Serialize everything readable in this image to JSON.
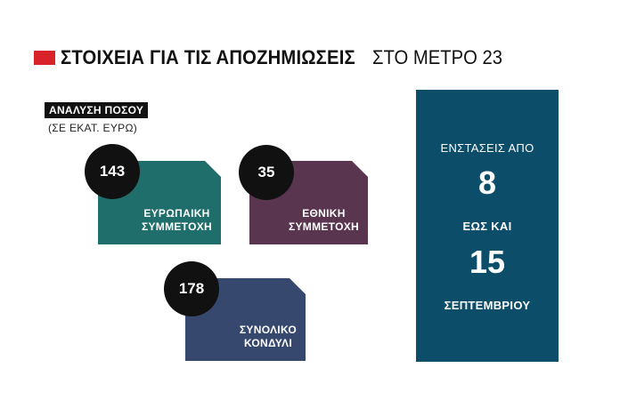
{
  "header": {
    "title_bold": "ΣΤΟΙΧΕΙΑ ΓΙΑ ΤΙΣ ΑΠΟΖΗΜΙΩΣΕΙΣ",
    "title_light": "ΣΤΟ ΜΕΤΡΟ 23",
    "accent_color": "#d9232b"
  },
  "breakdown": {
    "label": "ΑΝΑΛΥΣΗ ΠΟΣΟΥ",
    "unit": "(ΣΕ ΕΚΑΤ. ΕΥΡΩ)"
  },
  "cards": [
    {
      "value": "143",
      "label_line1": "ΕΥΡΩΠΑΙΚΗ",
      "label_line2": "ΣΥΜΜΕΤΟΧΗ",
      "color": "#1f6e6b"
    },
    {
      "value": "35",
      "label_line1": "ΕΘΝΙΚΗ",
      "label_line2": "ΣΥΜΜΕΤΟΧΗ",
      "color": "#5a3550"
    },
    {
      "value": "178",
      "label_line1": "ΣΥΝΟΛΙΚΟ",
      "label_line2": "ΚΟΝΔΥΛΙ",
      "color": "#37486e"
    }
  ],
  "objections": {
    "line1": "ΕΝΣΤΑΣΕΙΣ ΑΠΟ",
    "from_day": "8",
    "line2": "ΕΩΣ ΚΑΙ",
    "to_day": "15",
    "month": "ΣΕΠΤΕΜΒΡΙΟΥ",
    "color": "#0c4d6a"
  }
}
